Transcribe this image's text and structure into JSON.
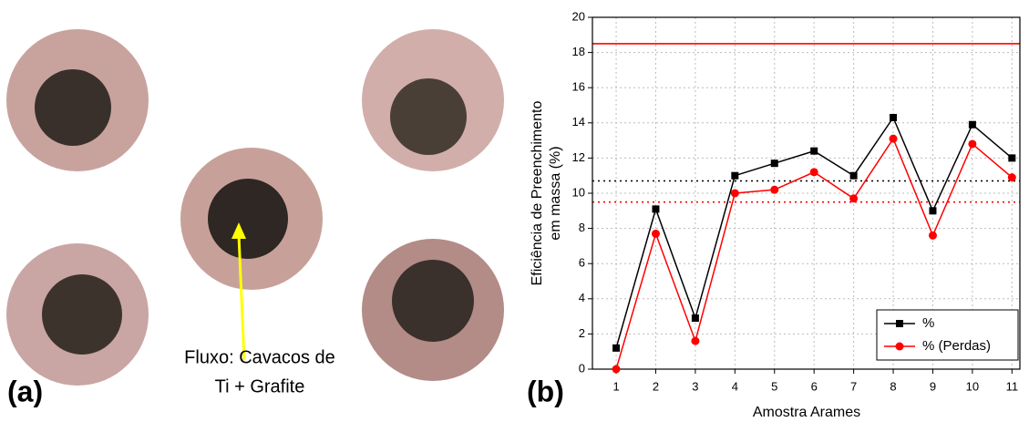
{
  "panel_a": {
    "label": "(a)",
    "annotation": [
      "Fluxo: Cavacos de",
      "Ti + Grafite"
    ]
  },
  "chart_data": {
    "type": "line",
    "panel_label": "(b)",
    "y_label": [
      "Eficiência de Preenchimento",
      "em massa (%)"
    ],
    "x_label": "Amostra Arames",
    "x": [
      1,
      2,
      3,
      4,
      5,
      6,
      7,
      8,
      9,
      10,
      11
    ],
    "xlim": [
      0.4,
      11.2
    ],
    "xticks": [
      1,
      2,
      3,
      4,
      5,
      6,
      7,
      8,
      9,
      10,
      11
    ],
    "ylim": [
      0,
      20
    ],
    "yticks": [
      0,
      2,
      4,
      6,
      8,
      10,
      12,
      14,
      16,
      18,
      20
    ],
    "grid": true,
    "legend": "lower right",
    "series": [
      {
        "name": "%",
        "color": "#000000",
        "marker": "square",
        "values": [
          1.2,
          9.1,
          2.9,
          11.0,
          11.7,
          12.4,
          11.0,
          14.3,
          9.0,
          13.9,
          12.0
        ]
      },
      {
        "name": "% (Perdas)",
        "color": "#ff0000",
        "marker": "circle",
        "values": [
          0.0,
          7.7,
          1.6,
          10.0,
          10.2,
          11.2,
          9.7,
          13.1,
          7.6,
          12.8,
          10.9
        ]
      }
    ],
    "reference_lines": [
      {
        "value": 18.5,
        "color": "#ff0000",
        "style": "solid"
      },
      {
        "value": 10.7,
        "color": "#000000",
        "style": "dotted"
      },
      {
        "value": 9.5,
        "color": "#ff0000",
        "style": "dotted"
      }
    ]
  }
}
